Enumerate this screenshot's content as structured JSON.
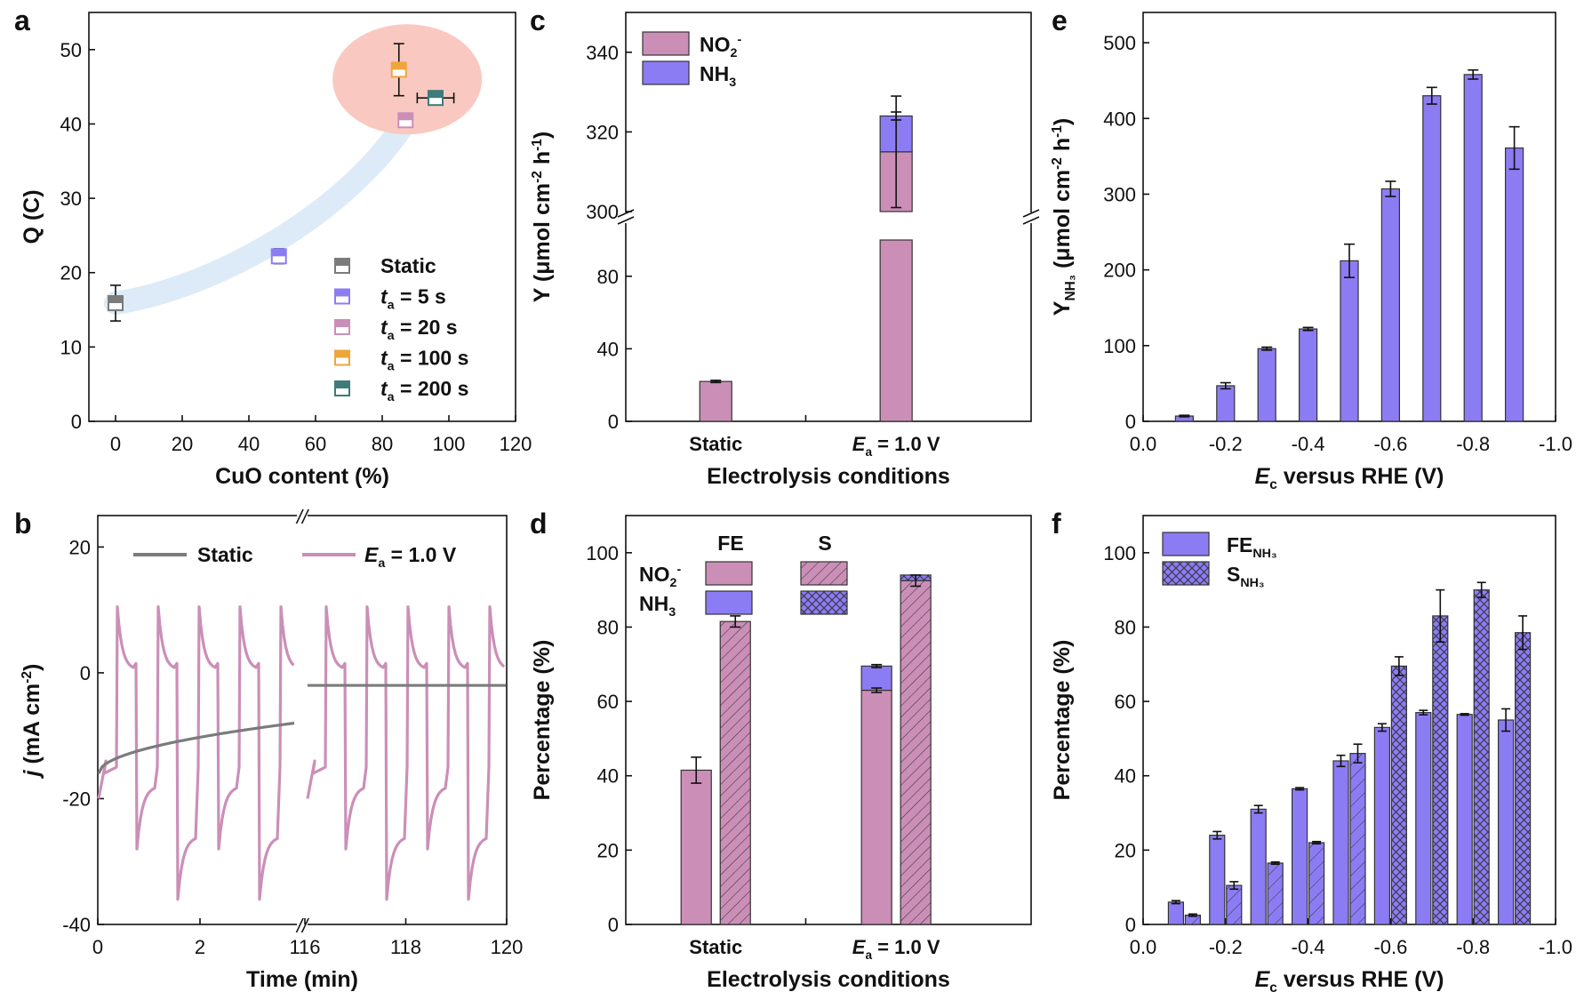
{
  "colors": {
    "pink": "#CB8FB7",
    "blue": "#8C7CF4",
    "gray": "#7B7B7B",
    "orange": "#EDA63A",
    "teal": "#3E7B7B",
    "highlight": "#F9C9C1",
    "band": "#DCEBF7"
  },
  "chart_data": [
    {
      "panel": "a",
      "type": "scatter",
      "xlabel": "CuO content (%)",
      "ylabel": "Q (C)",
      "xlim": [
        -8,
        120
      ],
      "ylim": [
        0,
        55
      ],
      "xticks": [
        "0",
        "20",
        "40",
        "60",
        "80",
        "100",
        "120"
      ],
      "yticks": [
        "0",
        "10",
        "20",
        "30",
        "40",
        "50"
      ],
      "legend_position": "bottom-right",
      "series": [
        {
          "name": "Static",
          "color": "#7B7B7B",
          "x": 0,
          "y": 15.9,
          "yerr": 2.4,
          "xerr": 0
        },
        {
          "name": "= 5 s",
          "sym": "t",
          "sub": "a",
          "color": "#8C7CF4",
          "x": 49,
          "y": 22.2,
          "yerr": 1.0,
          "xerr": 0
        },
        {
          "name": "= 20 s",
          "sym": "t",
          "sub": "a",
          "color": "#CB8FB7",
          "x": 87,
          "y": 40.5,
          "yerr": 0.8,
          "xerr": 1.5
        },
        {
          "name": "= 100 s",
          "sym": "t",
          "sub": "a",
          "color": "#EDA63A",
          "x": 85,
          "y": 47.3,
          "yerr": 3.5,
          "xerr": 0
        },
        {
          "name": "= 200 s",
          "sym": "t",
          "sub": "a",
          "color": "#3E7B7B",
          "x": 96,
          "y": 43.5,
          "yerr": 0.8,
          "xerr": 5.5
        }
      ]
    },
    {
      "panel": "b",
      "type": "line",
      "xlabel": "Time (min)",
      "ylabel_sym": "j",
      "ylabel": "(mA cm",
      "ylabel_sup": "-2",
      "ylabel_end": ")",
      "xticks": [
        "0",
        "2",
        "116",
        "118",
        "120"
      ],
      "yticks": [
        "-40",
        "-20",
        "0",
        "20"
      ],
      "ylim": [
        -40,
        25
      ],
      "axis_break": "//",
      "legend_position": "top",
      "series": [
        {
          "name": "Static",
          "color": "#7B7B7B",
          "start_value": -16,
          "end_value_first_segment": -8,
          "value_second_segment": -2
        },
        {
          "name": "= 1.0 V",
          "sym": "E",
          "sub": "a",
          "color": "#CB8FB7",
          "pulse_max": 10.5,
          "pulse_min": -38,
          "pulse_count": 10
        }
      ]
    },
    {
      "panel": "c",
      "type": "bar",
      "xlabel": "Electrolysis conditions",
      "ylabel": "Y (μmol cm",
      "ylabel_sup1": "-2",
      "ylabel_mid": " h",
      "ylabel_sup2": "-1",
      "ylabel_end": ")",
      "categories": [
        {
          "label": "Static"
        },
        {
          "sym": "E",
          "sub": "a",
          "label": " = 1.0 V"
        }
      ],
      "stacked": true,
      "broken_y_axis": {
        "lower": [
          0,
          100
        ],
        "upper": [
          300,
          350
        ]
      },
      "yticks_lower": [
        "0",
        "40",
        "80"
      ],
      "yticks_upper": [
        "300",
        "320",
        "340"
      ],
      "legend_position": "top-left",
      "series": [
        {
          "name": "NO",
          "sub": "2",
          "sup": "-",
          "color": "#CB8FB7",
          "values": [
            22,
            315
          ],
          "errors": [
            0.6,
            14
          ]
        },
        {
          "name": "NH",
          "sub": "3",
          "color": "#8C7CF4",
          "values": [
            0,
            9
          ],
          "errors": [
            0,
            1
          ]
        }
      ]
    },
    {
      "panel": "d",
      "type": "bar",
      "xlabel": "Electrolysis conditions",
      "ylabel": "Percentage (%)",
      "ylim": [
        0,
        110
      ],
      "yticks": [
        "0",
        "20",
        "40",
        "60",
        "80",
        "100"
      ],
      "categories": [
        {
          "label": "Static"
        },
        {
          "sym": "E",
          "sub": "a",
          "label": " = 1.0 V"
        }
      ],
      "legend_headers": [
        "FE",
        "S"
      ],
      "legend_position": "top-left",
      "legend_rows": [
        {
          "name": "NO",
          "sub": "2",
          "sup": "-",
          "color": "#CB8FB7"
        },
        {
          "name": "NH",
          "sub": "3",
          "color": "#8C7CF4"
        }
      ],
      "groups": {
        "FE": {
          "NO2": [
            41.5,
            63
          ],
          "NH3": [
            0,
            6.5
          ],
          "errors": [
            3.5,
            0.6
          ]
        },
        "S": {
          "NO2": [
            81.5,
            92.5
          ],
          "NH3": [
            0,
            1.5
          ],
          "errors": [
            1.5,
            1.5
          ]
        }
      }
    },
    {
      "panel": "e",
      "type": "bar",
      "xlabel_sym": "E",
      "xlabel_sub": "c",
      "xlabel": " versus RHE (V)",
      "ylabel_main": "Y",
      "ylabel_sub": "NH₃",
      "ylabel": " (μmol cm",
      "ylabel_sup1": "-2",
      "ylabel_mid": " h",
      "ylabel_sup2": "-1",
      "ylabel_end": ")",
      "xlim": [
        0,
        -1.0
      ],
      "ylim": [
        0,
        540
      ],
      "xticks": [
        "0.0",
        "-0.2",
        "-0.4",
        "-0.6",
        "-0.8",
        "-1.0"
      ],
      "yticks": [
        "0",
        "100",
        "200",
        "300",
        "400",
        "500"
      ],
      "x": [
        -0.1,
        -0.2,
        -0.3,
        -0.4,
        -0.5,
        -0.6,
        -0.7,
        -0.8,
        -0.9
      ],
      "values": [
        7,
        47,
        96,
        122,
        212,
        307,
        430,
        458,
        361
      ],
      "errors": [
        1,
        4,
        2,
        2,
        22,
        10,
        11,
        6,
        28
      ],
      "color": "#8C7CF4"
    },
    {
      "panel": "f",
      "type": "bar",
      "xlabel_sym": "E",
      "xlabel_sub": "c",
      "xlabel": " versus RHE (V)",
      "ylabel": "Percentage (%)",
      "xlim": [
        0,
        -1.0
      ],
      "ylim": [
        0,
        110
      ],
      "xticks": [
        "0.0",
        "-0.2",
        "-0.4",
        "-0.6",
        "-0.8",
        "-1.0"
      ],
      "yticks": [
        "0",
        "20",
        "40",
        "60",
        "80",
        "100"
      ],
      "x": [
        -0.1,
        -0.2,
        -0.3,
        -0.4,
        -0.5,
        -0.6,
        -0.7,
        -0.8,
        -0.9
      ],
      "legend_position": "top-left",
      "series": [
        {
          "name": "FE",
          "sub": "NH₃",
          "color": "#8C7CF4",
          "pattern": "solid",
          "values": [
            6,
            24,
            31,
            36.5,
            44,
            53,
            57,
            56.5,
            55
          ],
          "errors": [
            0.4,
            1,
            1,
            0.3,
            1.5,
            1,
            0.6,
            0.2,
            3
          ]
        },
        {
          "name": "S",
          "sub": "NH₃",
          "color": "#8C7CF4",
          "pattern": "hatched",
          "values": [
            2.5,
            10.5,
            16.5,
            22,
            46,
            69.5,
            83,
            90,
            78.5
          ],
          "errors": [
            0.3,
            1,
            0.3,
            0.3,
            2.5,
            2.5,
            7,
            2,
            4.5
          ]
        }
      ]
    }
  ],
  "panels": {
    "a": "a",
    "b": "b",
    "c": "c",
    "d": "d",
    "e": "e",
    "f": "f"
  }
}
